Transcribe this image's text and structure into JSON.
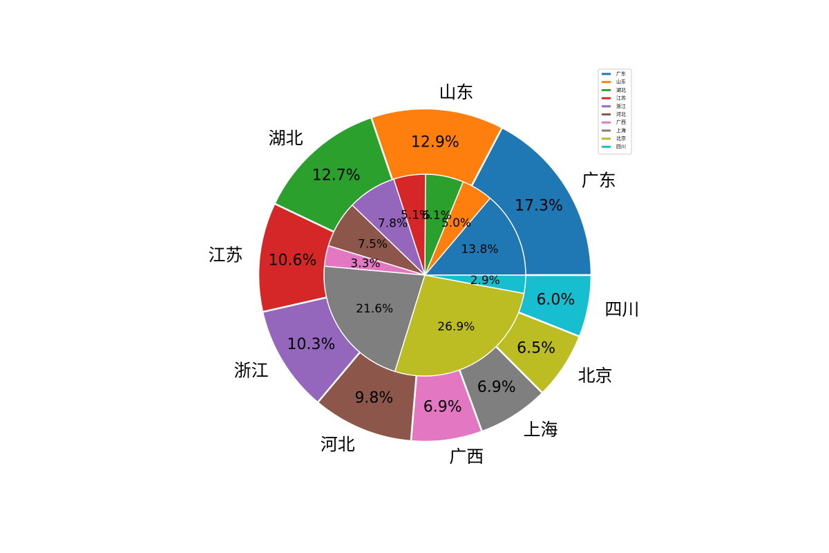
{
  "chart_data": {
    "type": "pie",
    "title": "",
    "categories": [
      "广东",
      "山东",
      "湖北",
      "江苏",
      "浙江",
      "河北",
      "广西",
      "上海",
      "北京",
      "四川"
    ],
    "colors": [
      "#1f77b4",
      "#ff7f0e",
      "#2ca02c",
      "#d62728",
      "#9467bd",
      "#8c564b",
      "#e377c2",
      "#7f7f7f",
      "#bcbd22",
      "#17becf"
    ],
    "series": [
      {
        "ring": "outer",
        "values": [
          17.3,
          12.9,
          12.7,
          10.6,
          10.3,
          9.8,
          6.9,
          6.9,
          6.5,
          6.0
        ],
        "labels": [
          "17.3%",
          "12.9%",
          "12.7%",
          "10.6%",
          "10.3%",
          "9.8%",
          "6.9%",
          "6.9%",
          "6.5%",
          "6.0%"
        ]
      },
      {
        "ring": "inner",
        "values": [
          13.8,
          5.0,
          6.1,
          5.1,
          7.8,
          7.5,
          3.3,
          21.6,
          26.9,
          2.9
        ],
        "labels": [
          "13.8%",
          "5.0%",
          "6.1%",
          "5.1%",
          "7.8%",
          "7.5%",
          "3.3%",
          "21.6%",
          "26.9%",
          "2.9%"
        ]
      }
    ],
    "legend": {
      "placement": "upper-right",
      "entries": [
        "广东",
        "山东",
        "湖北",
        "江苏",
        "浙江",
        "河北",
        "广西",
        "上海",
        "北京",
        "四川"
      ]
    }
  }
}
